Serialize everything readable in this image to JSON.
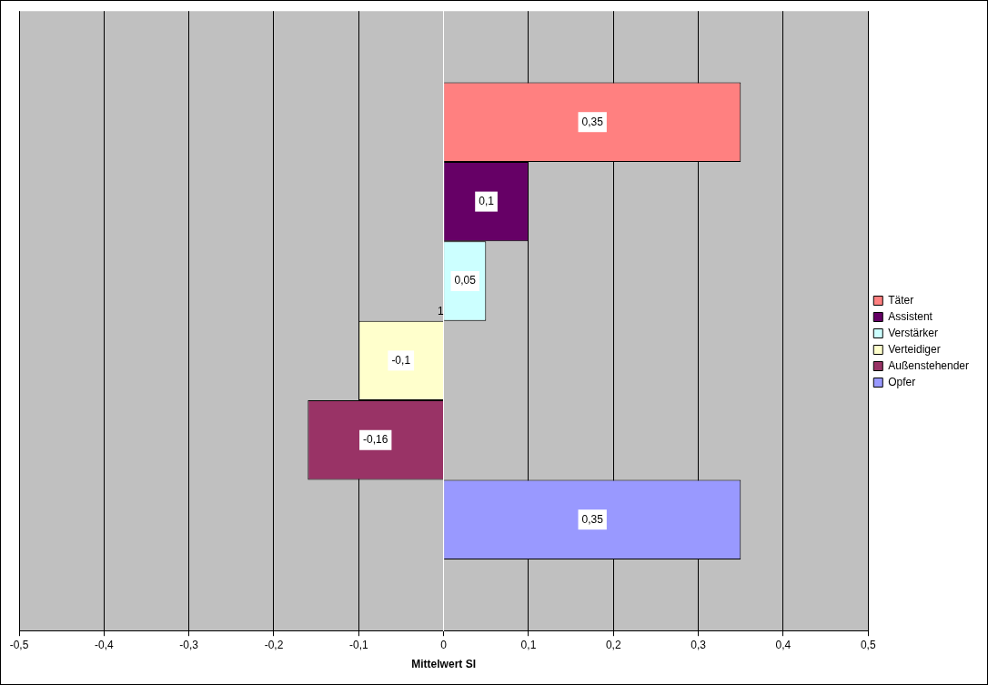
{
  "chart_data": {
    "type": "bar",
    "orientation": "horizontal",
    "categories": [
      "1"
    ],
    "series": [
      {
        "name": "Täter",
        "color": "#ff8080",
        "values": [
          0.35
        ],
        "value_labels": [
          "0,35"
        ]
      },
      {
        "name": "Assistent",
        "color": "#660066",
        "values": [
          0.1
        ],
        "value_labels": [
          "0,1"
        ]
      },
      {
        "name": "Verstärker",
        "color": "#ccffff",
        "values": [
          0.05
        ],
        "value_labels": [
          "0,05"
        ]
      },
      {
        "name": "Verteidiger",
        "color": "#ffffcc",
        "values": [
          -0.1
        ],
        "value_labels": [
          "-0,1"
        ]
      },
      {
        "name": "Außenstehender",
        "color": "#993366",
        "values": [
          -0.16
        ],
        "value_labels": [
          "-0,16"
        ]
      },
      {
        "name": "Opfer",
        "color": "#9999ff",
        "values": [
          0.35
        ],
        "value_labels": [
          "0,35"
        ]
      }
    ],
    "xlabel": "Mittelwert SI",
    "xlim": [
      -0.5,
      0.5
    ],
    "xticks": [
      {
        "value": -0.5,
        "label": "-0,5"
      },
      {
        "value": -0.4,
        "label": "-0,4"
      },
      {
        "value": -0.3,
        "label": "-0,3"
      },
      {
        "value": -0.2,
        "label": "-0,2"
      },
      {
        "value": -0.1,
        "label": "-0,1"
      },
      {
        "value": 0,
        "label": "0"
      },
      {
        "value": 0.1,
        "label": "0,1"
      },
      {
        "value": 0.2,
        "label": "0,2"
      },
      {
        "value": 0.3,
        "label": "0,3"
      },
      {
        "value": 0.4,
        "label": "0,4"
      },
      {
        "value": 0.5,
        "label": "0,5"
      }
    ],
    "grid": "x",
    "legend": "right"
  }
}
